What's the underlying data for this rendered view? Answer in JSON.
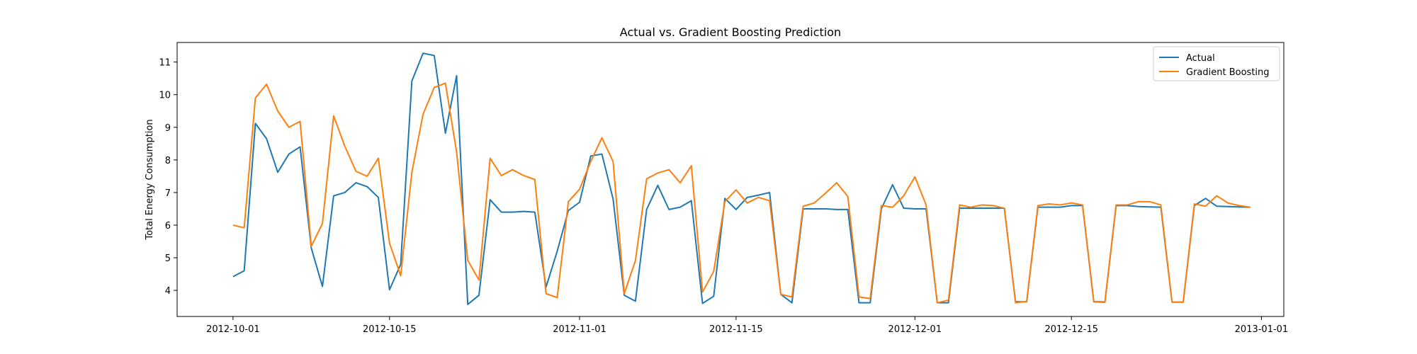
{
  "chart_data": {
    "type": "line",
    "title": "Actual vs. Gradient Boosting Prediction",
    "xlabel": "",
    "ylabel": "Total Energy Consumption",
    "xlim": [
      "2012-09-26",
      "2013-01-03"
    ],
    "ylim": [
      3.2,
      11.6
    ],
    "xticks": [
      "2012-10-01",
      "2012-10-15",
      "2012-11-01",
      "2012-11-15",
      "2012-12-01",
      "2012-12-15",
      "2013-01-01"
    ],
    "yticks": [
      4,
      5,
      6,
      7,
      8,
      9,
      10,
      11
    ],
    "grid": false,
    "legend_position": "top-right",
    "x": [
      "2012-10-01",
      "2012-10-02",
      "2012-10-03",
      "2012-10-04",
      "2012-10-05",
      "2012-10-06",
      "2012-10-07",
      "2012-10-08",
      "2012-10-09",
      "2012-10-10",
      "2012-10-11",
      "2012-10-12",
      "2012-10-13",
      "2012-10-14",
      "2012-10-15",
      "2012-10-16",
      "2012-10-17",
      "2012-10-18",
      "2012-10-19",
      "2012-10-20",
      "2012-10-21",
      "2012-10-22",
      "2012-10-23",
      "2012-10-24",
      "2012-10-25",
      "2012-10-26",
      "2012-10-27",
      "2012-10-28",
      "2012-10-29",
      "2012-10-30",
      "2012-10-31",
      "2012-11-01",
      "2012-11-02",
      "2012-11-03",
      "2012-11-04",
      "2012-11-05",
      "2012-11-06",
      "2012-11-07",
      "2012-11-08",
      "2012-11-09",
      "2012-11-10",
      "2012-11-11",
      "2012-11-12",
      "2012-11-13",
      "2012-11-14",
      "2012-11-15",
      "2012-11-16",
      "2012-11-17",
      "2012-11-18",
      "2012-11-19",
      "2012-11-20",
      "2012-11-21",
      "2012-11-22",
      "2012-11-23",
      "2012-11-24",
      "2012-11-25",
      "2012-11-26",
      "2012-11-27",
      "2012-11-28",
      "2012-11-29",
      "2012-11-30",
      "2012-12-01",
      "2012-12-02",
      "2012-12-03",
      "2012-12-04",
      "2012-12-05",
      "2012-12-06",
      "2012-12-07",
      "2012-12-08",
      "2012-12-09",
      "2012-12-10",
      "2012-12-11",
      "2012-12-12",
      "2012-12-13",
      "2012-12-14",
      "2012-12-15",
      "2012-12-16",
      "2012-12-17",
      "2012-12-18",
      "2012-12-19",
      "2012-12-20",
      "2012-12-21",
      "2012-12-22",
      "2012-12-23",
      "2012-12-24",
      "2012-12-25",
      "2012-12-26",
      "2012-12-27",
      "2012-12-28",
      "2012-12-29",
      "2012-12-30",
      "2012-12-31"
    ],
    "series": [
      {
        "name": "Actual",
        "color": "#1f77b4",
        "values": [
          4.42,
          4.6,
          9.12,
          8.65,
          7.62,
          8.18,
          8.4,
          5.3,
          4.12,
          6.9,
          7.0,
          7.3,
          7.18,
          6.85,
          4.02,
          4.8,
          10.42,
          11.27,
          11.2,
          8.82,
          10.58,
          3.57,
          3.85,
          6.78,
          6.4,
          6.4,
          6.42,
          6.4,
          4.1,
          5.2,
          6.45,
          6.7,
          8.12,
          8.18,
          6.8,
          3.85,
          3.67,
          6.48,
          7.22,
          6.48,
          6.55,
          6.75,
          3.6,
          3.82,
          6.82,
          6.48,
          6.85,
          6.92,
          7.0,
          3.88,
          3.62,
          6.5,
          6.5,
          6.5,
          6.48,
          6.48,
          3.62,
          3.62,
          6.5,
          7.24,
          6.52,
          6.5,
          6.5,
          3.62,
          3.62,
          6.52,
          6.52,
          6.52,
          6.52,
          6.52,
          3.65,
          3.65,
          6.55,
          6.55,
          6.55,
          6.6,
          6.6,
          3.65,
          3.64,
          6.6,
          6.6,
          6.57,
          6.56,
          6.55,
          3.64,
          3.64,
          6.6,
          6.82,
          6.58,
          6.57,
          6.56,
          6.55
        ],
        "values_note": ""
      },
      {
        "name": "Gradient Boosting",
        "color": "#ff7f0e",
        "values": [
          6.0,
          5.92,
          9.9,
          10.32,
          9.5,
          9.0,
          9.18,
          5.35,
          6.05,
          9.35,
          8.42,
          7.65,
          7.5,
          8.05,
          5.45,
          4.45,
          7.62,
          9.4,
          10.22,
          10.35,
          8.25,
          4.92,
          4.32,
          8.05,
          7.52,
          7.7,
          7.52,
          7.4,
          3.9,
          3.78,
          6.72,
          7.1,
          7.95,
          8.68,
          7.95,
          3.9,
          4.92,
          7.42,
          7.6,
          7.7,
          7.3,
          7.82,
          3.95,
          4.58,
          6.72,
          7.08,
          6.68,
          6.85,
          6.75,
          3.88,
          3.8,
          6.58,
          6.68,
          6.98,
          7.3,
          6.88,
          3.8,
          3.75,
          6.6,
          6.55,
          6.9,
          7.48,
          6.62,
          3.62,
          3.7,
          6.62,
          6.55,
          6.62,
          6.6,
          6.52,
          3.62,
          3.66,
          6.6,
          6.65,
          6.62,
          6.68,
          6.62,
          3.66,
          3.65,
          6.62,
          6.62,
          6.72,
          6.72,
          6.62,
          3.64,
          3.64,
          6.65,
          6.58,
          6.9,
          6.68,
          6.6,
          6.55
        ]
      }
    ]
  }
}
